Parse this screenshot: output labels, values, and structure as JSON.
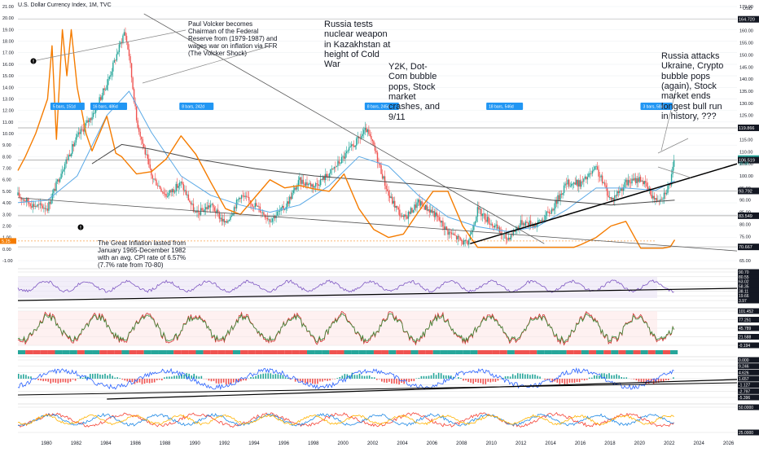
{
  "symbol_title": "U.S. Dollar Currency Index, 1M, TVC",
  "right_axis_unit": "USD",
  "colors": {
    "up": "#26a69a",
    "down": "#ef5350",
    "ffr": "#f57c00",
    "ma_fast": "#5aa9e6",
    "ma_slow": "#4a4a4a",
    "trendline": "#000000",
    "rsi": "#7e57c2",
    "tag_blue": "#2196f3"
  },
  "annotations": {
    "volcker": "Paul Volcker becomes Chairman of the Federal Reserve from (1979-1987) and wages war on inflation via FFR (The Volcker Shock)",
    "russia_nuclear": "Russia tests nuclear weapon in Kazakhstan at height of Cold War",
    "y2k": "Y2K, Dot-Com bubble pops, Stock market crashes, and 9/11",
    "russia_ukraine": "Russia attacks Ukraine, Crypto bubble pops (again), Stock market ends longest bull run in history, ???",
    "great_inflation": "The Great Inflation lasted from January 1965-December 1982 with an avg. CPI rate of 6.57% (7.7% rate from 70-80)"
  },
  "chart_data": {
    "type": "line",
    "title": "U.S. Dollar Currency Index, 1M, TVC",
    "left_axis": {
      "ylim": [
        -1,
        21
      ],
      "ticks": [
        "21.00",
        "20.00",
        "19.00",
        "18.00",
        "17.00",
        "16.00",
        "15.00",
        "14.00",
        "13.00",
        "12.00",
        "11.00",
        "10.00",
        "9.00",
        "8.00",
        "7.00",
        "6.00",
        "5.00",
        "4.00",
        "3.00",
        "2.00",
        "1.00",
        "0.00",
        "-1.00"
      ]
    },
    "right_axis": {
      "unit": "USD",
      "ylim": [
        65,
        170
      ],
      "ticks": [
        "170.00",
        "165.00",
        "160.00",
        "155.00",
        "150.00",
        "145.00",
        "140.00",
        "135.00",
        "130.00",
        "125.00",
        "120.00",
        "115.00",
        "110.00",
        "105.00",
        "100.00",
        "95.00",
        "90.00",
        "85.00",
        "80.00",
        "75.00",
        "70.00",
        "65.00"
      ]
    },
    "x_ticks": [
      "1980",
      "1982",
      "1984",
      "1986",
      "1988",
      "1990",
      "1992",
      "1994",
      "1996",
      "1998",
      "2000",
      "2002",
      "2004",
      "2006",
      "2008",
      "2010",
      "2012",
      "2014",
      "2016",
      "2018",
      "2020",
      "2022",
      "2024",
      "2026",
      "202"
    ],
    "price_labels": [
      "164.720",
      "119.866",
      "107.168",
      "106.519",
      "93.792",
      "83.549",
      "70.667"
    ],
    "price_label_sub": "30 4h",
    "left_value_label": "5.25",
    "bars_tags": [
      "5 bars, 151d",
      "16 bars, 486d",
      "8 bars, 242d",
      "8 bars, 245d",
      "18 bars, 546d",
      "3 bars, 58d"
    ],
    "series": [
      {
        "name": "",
        "kind": "dxy_monthly",
        "x_range": [
          1978,
          2022.3
        ],
        "points": [
          [
            1978,
            92
          ],
          [
            1979,
            88
          ],
          [
            1980,
            87
          ],
          [
            1981,
            103
          ],
          [
            1982,
            116
          ],
          [
            1983,
            125
          ],
          [
            1984,
            138
          ],
          [
            1985.2,
            160
          ],
          [
            1985.5,
            150
          ],
          [
            1986,
            123
          ],
          [
            1987,
            100
          ],
          [
            1988,
            92
          ],
          [
            1989,
            97
          ],
          [
            1990,
            84
          ],
          [
            1991,
            88
          ],
          [
            1992,
            80
          ],
          [
            1993,
            92
          ],
          [
            1994,
            88
          ],
          [
            1995,
            82
          ],
          [
            1996,
            87
          ],
          [
            1997,
            98
          ],
          [
            1998,
            96
          ],
          [
            1999,
            101
          ],
          [
            2000,
            108
          ],
          [
            2001.5,
            119
          ],
          [
            2002,
            112
          ],
          [
            2003,
            92
          ],
          [
            2004,
            82
          ],
          [
            2005,
            89
          ],
          [
            2006,
            85
          ],
          [
            2007,
            77
          ],
          [
            2008.3,
            71.5
          ],
          [
            2009,
            86
          ],
          [
            2010,
            80
          ],
          [
            2011,
            74
          ],
          [
            2012,
            81
          ],
          [
            2013,
            80
          ],
          [
            2014,
            86
          ],
          [
            2015,
            97
          ],
          [
            2016,
            97
          ],
          [
            2017,
            103
          ],
          [
            2018,
            90
          ],
          [
            2019,
            97
          ],
          [
            2020,
            99
          ],
          [
            2021,
            90
          ],
          [
            2021.5,
            92
          ],
          [
            2022,
            97
          ],
          [
            2022.3,
            107
          ]
        ]
      },
      {
        "name": "",
        "kind": "ffr",
        "axis": "left",
        "points": [
          [
            1978,
            6.8
          ],
          [
            1978.5,
            8
          ],
          [
            1979.2,
            10
          ],
          [
            1980,
            13
          ],
          [
            1980.3,
            17.6
          ],
          [
            1980.6,
            9.5
          ],
          [
            1981,
            19
          ],
          [
            1981.3,
            15
          ],
          [
            1981.6,
            19
          ],
          [
            1982,
            14
          ],
          [
            1982.6,
            10
          ],
          [
            1983,
            8.5
          ],
          [
            1984,
            11.5
          ],
          [
            1984.6,
            8.3
          ],
          [
            1985,
            8
          ],
          [
            1986,
            6.5
          ],
          [
            1987,
            6.7
          ],
          [
            1988,
            7.8
          ],
          [
            1989,
            9.8
          ],
          [
            1990,
            8.2
          ],
          [
            1991,
            5.8
          ],
          [
            1992,
            3.5
          ],
          [
            1993,
            3
          ],
          [
            1994,
            4.5
          ],
          [
            1995,
            6
          ],
          [
            1996,
            5.3
          ],
          [
            1997,
            5.5
          ],
          [
            1998,
            5.2
          ],
          [
            1999,
            5
          ],
          [
            2000,
            6.5
          ],
          [
            2001,
            3.5
          ],
          [
            2002,
            1.7
          ],
          [
            2003,
            1
          ],
          [
            2004,
            1.3
          ],
          [
            2005,
            3.2
          ],
          [
            2006,
            5
          ],
          [
            2007,
            5
          ],
          [
            2008,
            2
          ],
          [
            2009,
            0.15
          ],
          [
            2012,
            0.15
          ],
          [
            2015.5,
            0.15
          ],
          [
            2016,
            0.4
          ],
          [
            2017,
            1
          ],
          [
            2018,
            2
          ],
          [
            2019,
            2.4
          ],
          [
            2020,
            0.08
          ],
          [
            2021.5,
            0.08
          ],
          [
            2022,
            0.2
          ],
          [
            2022.3,
            0.8
          ]
        ]
      },
      {
        "name": "",
        "kind": "sma_fast",
        "points": [
          [
            1978,
            89
          ],
          [
            1980,
            90
          ],
          [
            1982,
            100
          ],
          [
            1984,
            125
          ],
          [
            1985.5,
            135
          ],
          [
            1987,
            118
          ],
          [
            1989,
            100
          ],
          [
            1991,
            92
          ],
          [
            1993,
            88
          ],
          [
            1995,
            85
          ],
          [
            1997,
            88
          ],
          [
            1999,
            96
          ],
          [
            2001,
            108
          ],
          [
            2003,
            104
          ],
          [
            2005,
            92
          ],
          [
            2007,
            83
          ],
          [
            2009,
            79
          ],
          [
            2011,
            77
          ],
          [
            2013,
            79
          ],
          [
            2015,
            86
          ],
          [
            2017,
            95
          ],
          [
            2019,
            95
          ],
          [
            2021,
            94
          ],
          [
            2022.3,
            98
          ]
        ]
      },
      {
        "name": "",
        "kind": "sma_slow",
        "points": [
          [
            1983,
            105
          ],
          [
            1985,
            113
          ],
          [
            1987,
            111
          ],
          [
            1990,
            107
          ],
          [
            1994,
            103
          ],
          [
            1998,
            100
          ],
          [
            2002,
            98
          ],
          [
            2006,
            96
          ],
          [
            2010,
            93
          ],
          [
            2014,
            90
          ],
          [
            2018,
            88
          ],
          [
            2022.3,
            90
          ]
        ]
      }
    ],
    "trendlines": [
      {
        "from": [
          1986.5,
          167
        ],
        "to": [
          2013.5,
          72
        ]
      },
      {
        "from": [
          2008.5,
          72
        ],
        "to": [
          2026.5,
          105
        ]
      },
      {
        "from": [
          1978,
          91
        ],
        "to": [
          2026.5,
          69
        ]
      }
    ],
    "rsi_panel": {
      "labels": [
        "90.70",
        "80.55",
        "63.02",
        "58.35",
        "38.11",
        "19.66",
        "3.97"
      ]
    },
    "stoch_panel": {
      "labels": [
        "101.452",
        "77.251",
        "45.789",
        "21.588",
        "-0.194"
      ]
    },
    "macd_panel": {
      "labels": [
        "0.000",
        "9.246",
        "4.626",
        "1.657",
        "-1.127",
        "-2.797",
        "-5.396"
      ]
    },
    "bottom_panel": {
      "labels": [
        "50.0000",
        "25.0000"
      ]
    }
  }
}
